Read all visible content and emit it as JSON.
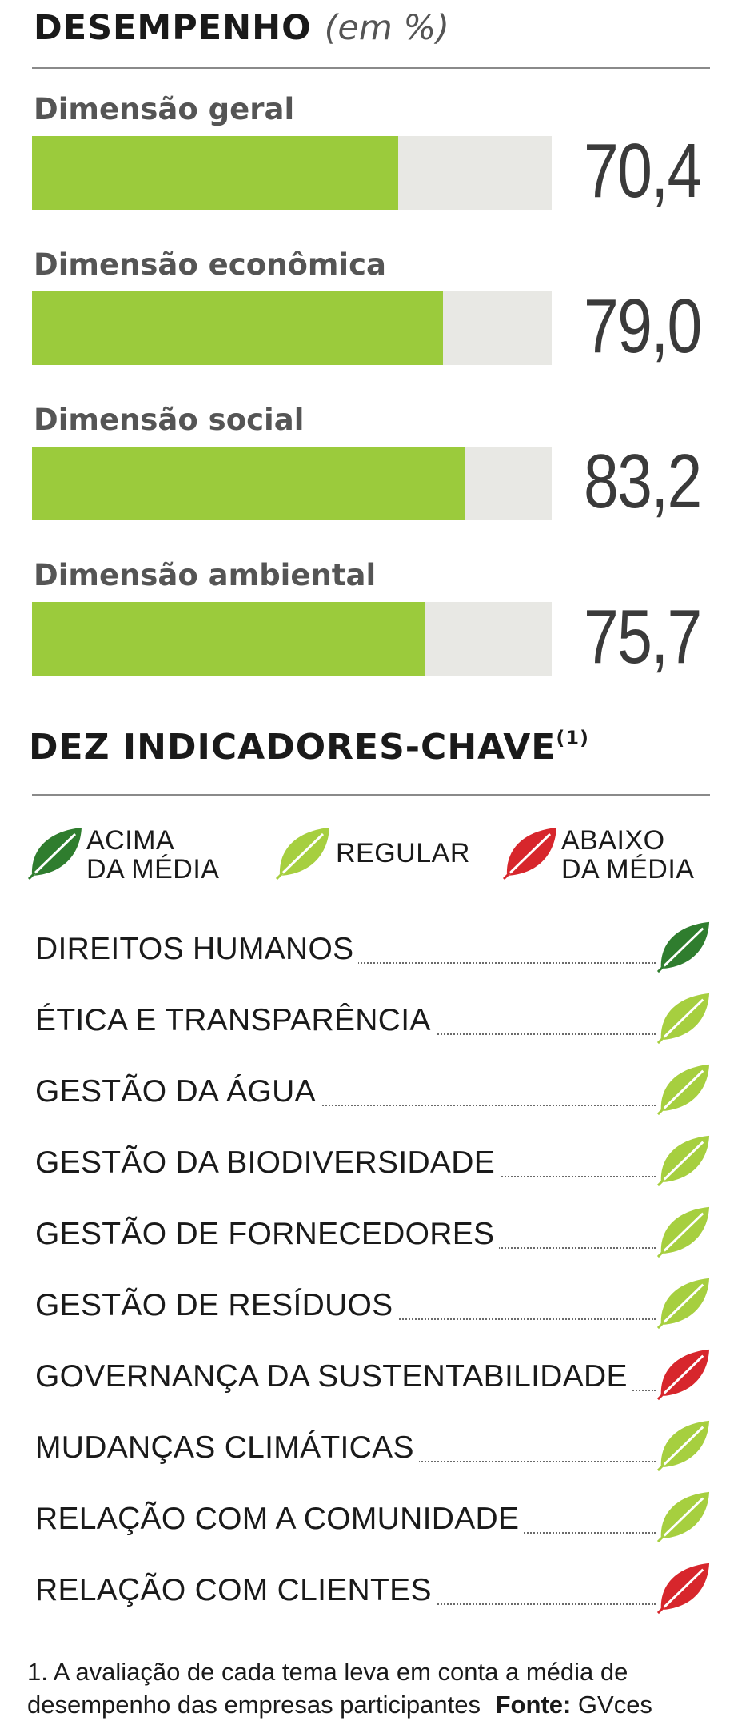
{
  "performance": {
    "title": "DESEMPENHO",
    "subtitle": "(em %)"
  },
  "chart_data": {
    "type": "bar",
    "orientation": "horizontal",
    "title": "DESEMPENHO",
    "subtitle": "(em %)",
    "ylim": [
      0,
      100
    ],
    "categories": [
      "Dimensão geral",
      "Dimensão econômica",
      "Dimensão social",
      "Dimensão ambiental"
    ],
    "values": [
      70.4,
      79.0,
      83.2,
      75.7
    ],
    "value_labels": [
      "70,4",
      "79,0",
      "83,2",
      "75,7"
    ],
    "colors": {
      "fill": "#9bcb3c",
      "track": "#e8e8e4"
    }
  },
  "indicators": {
    "title": "DEZ INDICADORES-CHAVE",
    "footnote_marker": "(1)",
    "legend": [
      {
        "line1": "ACIMA",
        "line2": "DA MÉDIA",
        "icon": "dark-green-leaf-icon",
        "color": "#2f7d2e"
      },
      {
        "line1": "REGULAR",
        "line2": "",
        "icon": "light-green-leaf-icon",
        "color": "#a6cf3f"
      },
      {
        "line1": "ABAIXO",
        "line2": "DA MÉDIA",
        "icon": "red-leaf-icon",
        "color": "#d7262c"
      }
    ],
    "items": [
      {
        "label": "DIREITOS HUMANOS",
        "status": "acima"
      },
      {
        "label": "ÉTICA E TRANSPARÊNCIA",
        "status": "regular"
      },
      {
        "label": "GESTÃO DA ÁGUA",
        "status": "regular"
      },
      {
        "label": "GESTÃO DA BIODIVERSIDADE",
        "status": "regular"
      },
      {
        "label": "GESTÃO DE FORNECEDORES",
        "status": "regular"
      },
      {
        "label": "GESTÃO DE RESÍDUOS",
        "status": "regular"
      },
      {
        "label": "GOVERNANÇA DA SUSTENTABILIDADE",
        "status": "abaixo"
      },
      {
        "label": "MUDANÇAS CLIMÁTICAS",
        "status": "regular"
      },
      {
        "label": "RELAÇÃO COM A COMUNIDADE",
        "status": "regular"
      },
      {
        "label": "RELAÇÃO COM CLIENTES",
        "status": "abaixo"
      }
    ]
  },
  "footnote": {
    "line1": "1. A avaliação de cada tema leva em conta a média de",
    "line2": "desempenho das empresas participantes",
    "source_label": "Fonte:",
    "source": "GVces"
  }
}
